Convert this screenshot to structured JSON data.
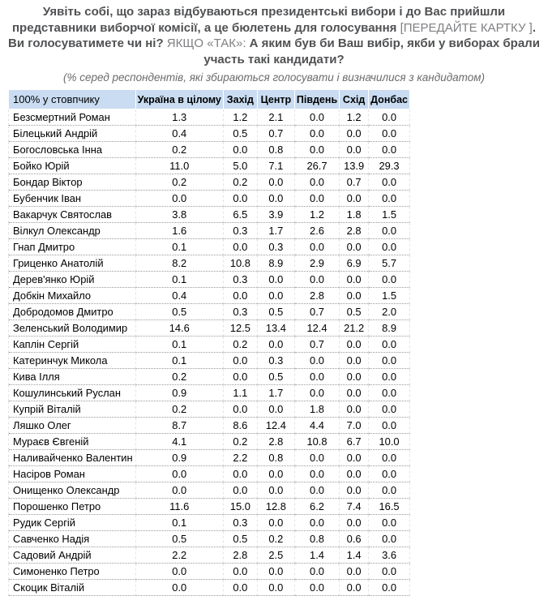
{
  "question": {
    "part1": "Уявіть собі, що зараз відбуваються президентські вибори і до Вас прийшли представники виборчої комісії, а це бюлетень для голосування ",
    "part2": "[ПЕРЕДАЙТЕ КАРТКУ ]",
    "part3": ". Ви голосуватимете чи ні? ",
    "part4": "ЯКЩО «ТАК»:",
    "part5": " А яким був би Ваш вибір, якби у виборах брали участь такі кандидати?"
  },
  "subtitle": "(% серед респондентів, які збираються голосувати і визначилися з кандидатом)",
  "colors": {
    "table_header_bg": "#c9dcf1",
    "question_bold_text": "#505153",
    "question_muted_text": "#7f8083",
    "row_divider": "#9a9a9a"
  },
  "chart_data": {
    "type": "table",
    "columns": [
      "100% у стовпчику",
      "Україна в цілому",
      "Захід",
      "Центр",
      "Південь",
      "Схід",
      "Донбас"
    ],
    "rows": [
      {
        "name": "Безсмертний Роман",
        "values": [
          1.3,
          1.2,
          2.1,
          0.0,
          1.2,
          0.0
        ]
      },
      {
        "name": "Білецький Андрій",
        "values": [
          0.4,
          0.5,
          0.7,
          0.0,
          0.0,
          0.0
        ]
      },
      {
        "name": "Богословська Інна",
        "values": [
          0.2,
          0.0,
          0.8,
          0.0,
          0.0,
          0.0
        ]
      },
      {
        "name": "Бойко Юрій",
        "values": [
          11.0,
          5.0,
          7.1,
          26.7,
          13.9,
          29.3
        ]
      },
      {
        "name": "Бондар Віктор",
        "values": [
          0.2,
          0.2,
          0.0,
          0.0,
          0.7,
          0.0
        ]
      },
      {
        "name": "Бубенчик Іван",
        "values": [
          0.0,
          0.0,
          0.0,
          0.0,
          0.0,
          0.0
        ]
      },
      {
        "name": "Вакарчук Святослав",
        "values": [
          3.8,
          6.5,
          3.9,
          1.2,
          1.8,
          1.5
        ]
      },
      {
        "name": "Вілкул Олександр",
        "values": [
          1.6,
          0.3,
          1.7,
          2.6,
          2.8,
          0.0
        ]
      },
      {
        "name": "Гнап Дмитро",
        "values": [
          0.1,
          0.0,
          0.3,
          0.0,
          0.0,
          0.0
        ]
      },
      {
        "name": "Гриценко Анатолій",
        "values": [
          8.2,
          10.8,
          8.9,
          2.9,
          6.9,
          5.7
        ]
      },
      {
        "name": "Дерев'янко Юрій",
        "values": [
          0.1,
          0.3,
          0.0,
          0.0,
          0.0,
          0.0
        ]
      },
      {
        "name": "Добкін Михайло",
        "values": [
          0.4,
          0.0,
          0.0,
          2.8,
          0.0,
          1.5
        ]
      },
      {
        "name": "Добродомов Дмитро",
        "values": [
          0.5,
          0.3,
          0.5,
          0.7,
          0.5,
          2.0
        ]
      },
      {
        "name": "Зеленський Володимир",
        "values": [
          14.6,
          12.5,
          13.4,
          12.4,
          21.2,
          8.9
        ]
      },
      {
        "name": "Каплін Сергій",
        "values": [
          0.1,
          0.2,
          0.0,
          0.7,
          0.0,
          0.0
        ]
      },
      {
        "name": "Катеринчук Микола",
        "values": [
          0.1,
          0.0,
          0.3,
          0.0,
          0.0,
          0.0
        ]
      },
      {
        "name": "Кива Ілля",
        "values": [
          0.2,
          0.0,
          0.5,
          0.0,
          0.0,
          0.0
        ]
      },
      {
        "name": "Кошулинський Руслан",
        "values": [
          0.9,
          1.1,
          1.7,
          0.0,
          0.0,
          0.0
        ]
      },
      {
        "name": "Купрій Віталій",
        "values": [
          0.2,
          0.0,
          0.0,
          1.8,
          0.0,
          0.0
        ]
      },
      {
        "name": "Ляшко Олег",
        "values": [
          8.7,
          8.6,
          12.4,
          4.4,
          7.0,
          0.0
        ]
      },
      {
        "name": "Мураєв Євгеній",
        "values": [
          4.1,
          0.2,
          2.8,
          10.8,
          6.7,
          10.0
        ]
      },
      {
        "name": "Наливайченко Валентин",
        "values": [
          0.9,
          2.2,
          0.8,
          0.0,
          0.0,
          0.0
        ]
      },
      {
        "name": "Насіров Роман",
        "values": [
          0.0,
          0.0,
          0.0,
          0.0,
          0.0,
          0.0
        ]
      },
      {
        "name": "Онищенко Олександр",
        "values": [
          0.0,
          0.0,
          0.0,
          0.0,
          0.0,
          0.0
        ]
      },
      {
        "name": "Порошенко Петро",
        "values": [
          11.6,
          15.0,
          12.8,
          6.2,
          7.4,
          16.5
        ]
      },
      {
        "name": "Рудик Сергій",
        "values": [
          0.1,
          0.3,
          0.0,
          0.0,
          0.0,
          0.0
        ]
      },
      {
        "name": "Савченко Надія",
        "values": [
          0.5,
          0.5,
          0.2,
          0.8,
          0.6,
          0.0
        ]
      },
      {
        "name": "Садовий Андрій",
        "values": [
          2.2,
          2.8,
          2.5,
          1.4,
          1.4,
          3.6
        ]
      },
      {
        "name": "Симоненко Петро",
        "values": [
          0.0,
          0.0,
          0.0,
          0.0,
          0.0,
          0.0
        ]
      },
      {
        "name": "Скоцик Віталій",
        "values": [
          0.0,
          0.0,
          0.0,
          0.0,
          0.0,
          0.0
        ]
      }
    ]
  }
}
